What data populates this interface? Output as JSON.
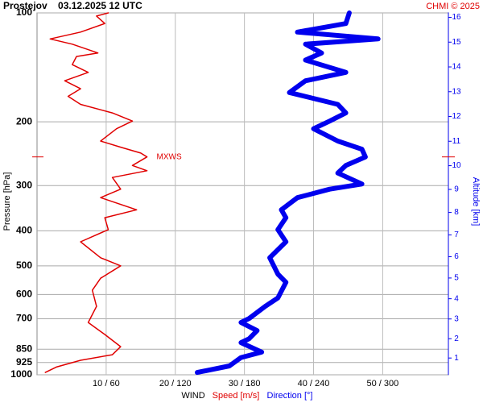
{
  "chart_data": {
    "type": "line",
    "title": "Prostejov    03.12.2025 12 UTC",
    "credit": "CHMI © 2025",
    "ylabel": "Pressure [hPa]",
    "y2label": "Altitude [km]",
    "xlabel": "WIND",
    "log_y": true,
    "grid": true,
    "ylim": [
      1000,
      100
    ],
    "yticks": [
      100,
      200,
      300,
      400,
      500,
      600,
      700,
      850,
      925,
      1000
    ],
    "y2lim": [
      0.1,
      16.2
    ],
    "y2ticks": [
      1,
      2,
      3,
      4,
      5,
      6,
      7,
      8,
      9,
      10,
      11,
      12,
      13,
      14,
      15,
      16
    ],
    "xlim": [
      0,
      59.5
    ],
    "xticks": [
      {
        "value": 10,
        "label": "10 / 60"
      },
      {
        "value": 20,
        "label": "20 / 120"
      },
      {
        "value": 30,
        "label": "30 / 180"
      },
      {
        "value": 40,
        "label": "40 / 240"
      },
      {
        "value": 50,
        "label": "50 / 300"
      }
    ],
    "annotation": {
      "text": "MXWS",
      "pressure": 250
    },
    "series": [
      {
        "name": "Speed [m/s]",
        "color": "#e00000",
        "width": 1.5,
        "pressure": [
          100,
          102,
          107,
          113,
          118,
          122,
          129,
          132,
          139,
          146,
          154,
          162,
          170,
          179,
          189,
          199,
          209,
          226,
          235,
          244,
          250,
          264,
          273,
          285,
          307,
          324,
          350,
          368,
          397,
          429,
          475,
          500,
          541,
          584,
          647,
          717,
          774,
          836,
          880,
          912,
          952,
          985
        ],
        "values": [
          10.3,
          8.6,
          9.8,
          6.3,
          1.9,
          5.1,
          8.8,
          5.7,
          5.1,
          7.4,
          4.0,
          6.3,
          4.5,
          6.3,
          10.9,
          13.8,
          11.5,
          9.2,
          12.1,
          15.0,
          15.9,
          13.8,
          15.9,
          10.9,
          12.1,
          9.2,
          14.4,
          9.8,
          10.3,
          6.3,
          9.2,
          12.1,
          9.2,
          8.0,
          8.6,
          7.4,
          9.8,
          12.1,
          10.9,
          6.3,
          2.8,
          1.2
        ]
      },
      {
        "name": "Direction [°]",
        "color": "#0000ee",
        "width": 6,
        "scale": 6,
        "pressure": [
          100,
          107,
          113,
          118,
          122,
          129,
          135,
          146,
          154,
          166,
          179,
          189,
          199,
          209,
          226,
          238,
          250,
          264,
          277,
          297,
          307,
          324,
          350,
          368,
          397,
          429,
          475,
          527,
          555,
          613,
          647,
          699,
          717,
          755,
          795,
          815,
          866,
          896,
          945,
          985
        ],
        "values": [
          271,
          268,
          226,
          296,
          233,
          247,
          233,
          268,
          233,
          219,
          261,
          268,
          254,
          240,
          261,
          282,
          285,
          268,
          261,
          282,
          254,
          226,
          212,
          216,
          209,
          216,
          202,
          209,
          216,
          209,
          198,
          184,
          177,
          191,
          184,
          177,
          195,
          177,
          167,
          139
        ]
      }
    ]
  }
}
